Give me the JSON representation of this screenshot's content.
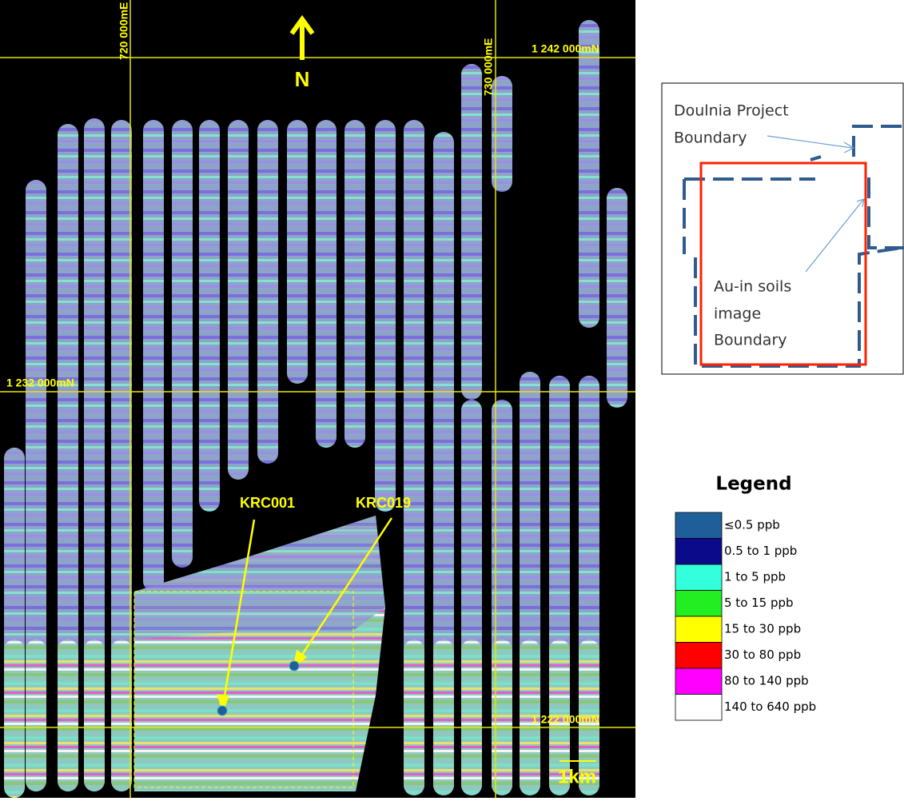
{
  "map": {
    "north": "N",
    "grid_labels": {
      "e720": "720 000mE",
      "e730": "730 000mE",
      "n1242": "1 242 000mN",
      "n1232": "1 232 000mN",
      "n1222": "1 222 000mN"
    },
    "drillholes": [
      "KRC001",
      "KRC019"
    ],
    "scale": "1km"
  },
  "inset": {
    "project_boundary": [
      "Doulnia Project",
      "Boundary"
    ],
    "soils_boundary": [
      "Au-in soils",
      "image",
      "Boundary"
    ]
  },
  "legend": {
    "title": "Legend",
    "items": [
      {
        "label": "≤0.5 ppb",
        "color": "#1f5f99"
      },
      {
        "label": "0.5 to 1 ppb",
        "color": "#0a0a8a"
      },
      {
        "label": "1 to 5 ppb",
        "color": "#33ffdd"
      },
      {
        "label": "5 to 15 ppb",
        "color": "#22ee22"
      },
      {
        "label": "15 to 30 ppb",
        "color": "#ffff00"
      },
      {
        "label": "30 to 80 ppb",
        "color": "#ff0000"
      },
      {
        "label": "80 to 140 ppb",
        "color": "#ff00ff"
      },
      {
        "label": "140 to 640 ppb",
        "color": "#ffffff"
      }
    ]
  }
}
